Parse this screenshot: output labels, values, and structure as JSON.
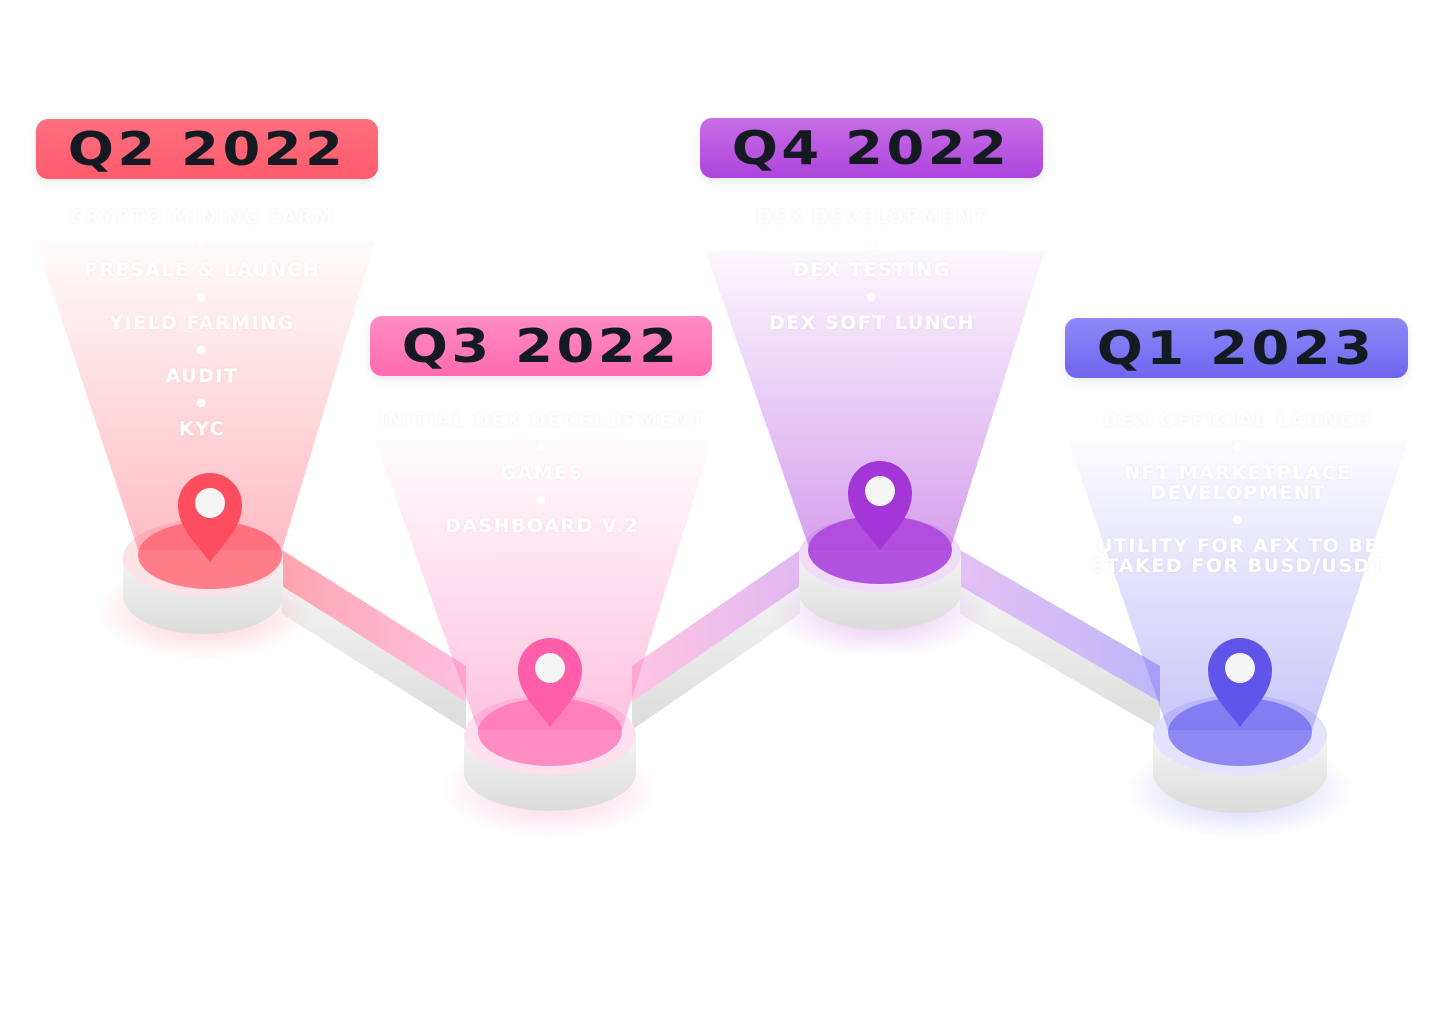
{
  "milestones": [
    {
      "period": "Q2 2022",
      "color": "#ff5b6d",
      "items": [
        "CRYPTO MINING FARM",
        "PRESALE & LAUNCH",
        "YIELD FARMING",
        "AUDIT",
        "KYC"
      ]
    },
    {
      "period": "Q3 2022",
      "color": "#ff6bb0",
      "items": [
        "INITIAL DEX DEVELOPMENT",
        "GAMES",
        "DASHBOARD V.2"
      ]
    },
    {
      "period": "Q4 2022",
      "color": "#ad44dc",
      "items": [
        "DEX DEVELOPMENT",
        "DEX TESTING",
        "DEX SOFT LUNCH"
      ]
    },
    {
      "period": "Q1 2023",
      "color": "#6f66ef",
      "items": [
        "DEX OFFICIAL LAUNCH",
        "NFT MARKETPLACE DEVELOPMENT",
        "UTILITY FOR AFX TO BE STAKED FOR BUSD/USDT"
      ]
    }
  ]
}
